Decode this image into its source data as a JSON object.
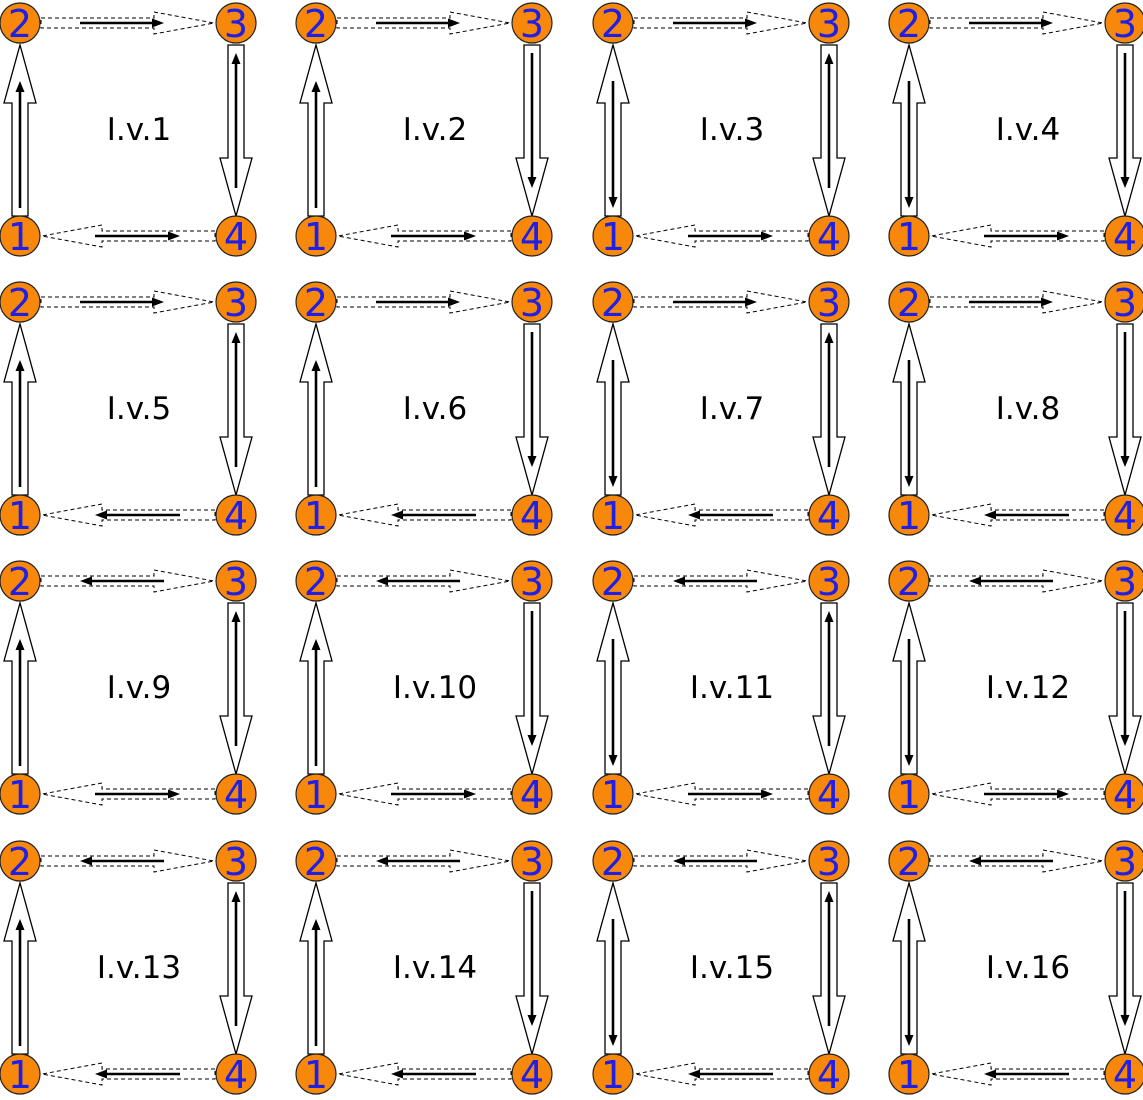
{
  "colors": {
    "node_fill": "#f7880c",
    "node_text": "#1f1fe6",
    "line": "#000000",
    "background": "#ffffff"
  },
  "edges": {
    "left": {
      "from": "1",
      "to": "2",
      "outline": "solid"
    },
    "right": {
      "from": "3",
      "to": "4",
      "outline": "solid"
    },
    "top": {
      "from": "2",
      "to": "3",
      "outline": "dashed"
    },
    "bottom": {
      "from": "4",
      "to": "1",
      "outline": "dashed"
    }
  },
  "panels": [
    {
      "label": "I.v.1",
      "nodes": [
        "1",
        "2",
        "3",
        "4"
      ],
      "inner": {
        "left": "up",
        "right": "up",
        "top": "right",
        "bottom": "right"
      }
    },
    {
      "label": "I.v.2",
      "nodes": [
        "1",
        "2",
        "3",
        "4"
      ],
      "inner": {
        "left": "up",
        "right": "down",
        "top": "right",
        "bottom": "right"
      }
    },
    {
      "label": "I.v.3",
      "nodes": [
        "1",
        "2",
        "3",
        "4"
      ],
      "inner": {
        "left": "down",
        "right": "up",
        "top": "right",
        "bottom": "right"
      }
    },
    {
      "label": "I.v.4",
      "nodes": [
        "1",
        "2",
        "3",
        "4"
      ],
      "inner": {
        "left": "down",
        "right": "down",
        "top": "right",
        "bottom": "right"
      }
    },
    {
      "label": "I.v.5",
      "nodes": [
        "1",
        "2",
        "3",
        "4"
      ],
      "inner": {
        "left": "up",
        "right": "up",
        "top": "right",
        "bottom": "left"
      }
    },
    {
      "label": "I.v.6",
      "nodes": [
        "1",
        "2",
        "3",
        "4"
      ],
      "inner": {
        "left": "up",
        "right": "down",
        "top": "right",
        "bottom": "left"
      }
    },
    {
      "label": "I.v.7",
      "nodes": [
        "1",
        "2",
        "3",
        "4"
      ],
      "inner": {
        "left": "down",
        "right": "up",
        "top": "right",
        "bottom": "left"
      }
    },
    {
      "label": "I.v.8",
      "nodes": [
        "1",
        "2",
        "3",
        "4"
      ],
      "inner": {
        "left": "down",
        "right": "down",
        "top": "right",
        "bottom": "left"
      }
    },
    {
      "label": "I.v.9",
      "nodes": [
        "1",
        "2",
        "3",
        "4"
      ],
      "inner": {
        "left": "up",
        "right": "up",
        "top": "left",
        "bottom": "right"
      }
    },
    {
      "label": "I.v.10",
      "nodes": [
        "1",
        "2",
        "3",
        "4"
      ],
      "inner": {
        "left": "up",
        "right": "down",
        "top": "left",
        "bottom": "right"
      }
    },
    {
      "label": "I.v.11",
      "nodes": [
        "1",
        "2",
        "3",
        "4"
      ],
      "inner": {
        "left": "down",
        "right": "up",
        "top": "left",
        "bottom": "right"
      }
    },
    {
      "label": "I.v.12",
      "nodes": [
        "1",
        "2",
        "3",
        "4"
      ],
      "inner": {
        "left": "down",
        "right": "down",
        "top": "left",
        "bottom": "right"
      }
    },
    {
      "label": "I.v.13",
      "nodes": [
        "1",
        "2",
        "3",
        "4"
      ],
      "inner": {
        "left": "up",
        "right": "up",
        "top": "left",
        "bottom": "left"
      }
    },
    {
      "label": "I.v.14",
      "nodes": [
        "1",
        "2",
        "3",
        "4"
      ],
      "inner": {
        "left": "up",
        "right": "down",
        "top": "left",
        "bottom": "left"
      }
    },
    {
      "label": "I.v.15",
      "nodes": [
        "1",
        "2",
        "3",
        "4"
      ],
      "inner": {
        "left": "down",
        "right": "up",
        "top": "left",
        "bottom": "left"
      }
    },
    {
      "label": "I.v.16",
      "nodes": [
        "1",
        "2",
        "3",
        "4"
      ],
      "inner": {
        "left": "down",
        "right": "down",
        "top": "left",
        "bottom": "left"
      }
    }
  ]
}
